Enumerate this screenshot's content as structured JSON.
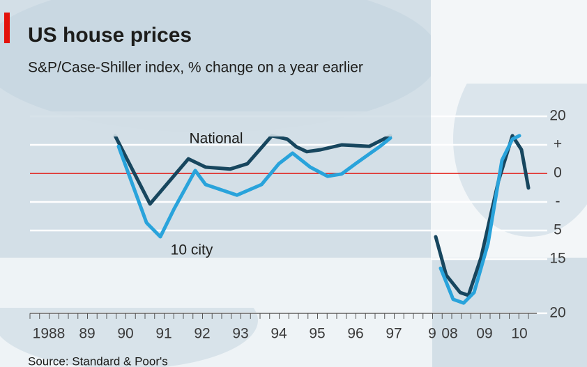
{
  "chart_data": {
    "type": "line",
    "title": "US house prices",
    "subtitle": "S&P/Case-Shiller index, % change on a year earlier",
    "source": "Source: Standard & Poor's",
    "categories": [
      "1988",
      "89",
      "90",
      "91",
      "92",
      "93",
      "94",
      "95",
      "96",
      "97",
      "9",
      "08",
      "09",
      "10"
    ],
    "ylim": [
      -49,
      20
    ],
    "yticks": [
      20,
      {
        "value": 10,
        "label": "+"
      },
      0,
      {
        "value": -10,
        "label": "-"
      },
      {
        "value": -20,
        "label": "5"
      },
      {
        "value": -30,
        "label": "15"
      },
      {
        "value": -49,
        "label": "20"
      }
    ],
    "zero_line_color": "#e3120b",
    "series": [
      {
        "name": "National",
        "color": "#17465e",
        "x": [
          1990.22,
          1991.13,
          1992.13,
          1992.58,
          1993.22,
          1993.67,
          1994.31,
          1994.71,
          1994.95,
          1995.22,
          1995.58,
          1996.13,
          1996.85,
          1997.4,
          2008.1,
          2008.4,
          2008.8,
          2009.04,
          2009.4,
          2009.9,
          2010.3,
          2010.56,
          2010.76
        ],
        "values": [
          13.2,
          -10.7,
          5.1,
          2.2,
          1.5,
          3.4,
          13.2,
          12.0,
          9.3,
          7.6,
          8.3,
          10.0,
          9.5,
          13.2,
          -22.2,
          -35.6,
          -41.7,
          -42.7,
          -29.5,
          -2.7,
          13.2,
          8.3,
          -5.1
        ]
      },
      {
        "name": "10 city",
        "color": "#29a3db",
        "x": [
          1990.31,
          1991.04,
          1991.4,
          1991.76,
          1992.31,
          1992.58,
          1993.4,
          1994.04,
          1994.49,
          1994.85,
          1995.31,
          1995.76,
          1996.13,
          1996.49,
          1997.13,
          1997.4,
          2008.24,
          2008.6,
          2008.9,
          2009.2,
          2009.6,
          2010.0,
          2010.3,
          2010.5
        ],
        "values": [
          9.5,
          -17.3,
          -22.2,
          -12.4,
          1.0,
          -3.9,
          -7.6,
          -3.9,
          3.4,
          7.1,
          2.2,
          -1.0,
          -0.2,
          3.4,
          9.5,
          12.4,
          -33.2,
          -44.1,
          -45.4,
          -41.7,
          -24.6,
          4.6,
          12.0,
          13.2
        ]
      }
    ]
  }
}
